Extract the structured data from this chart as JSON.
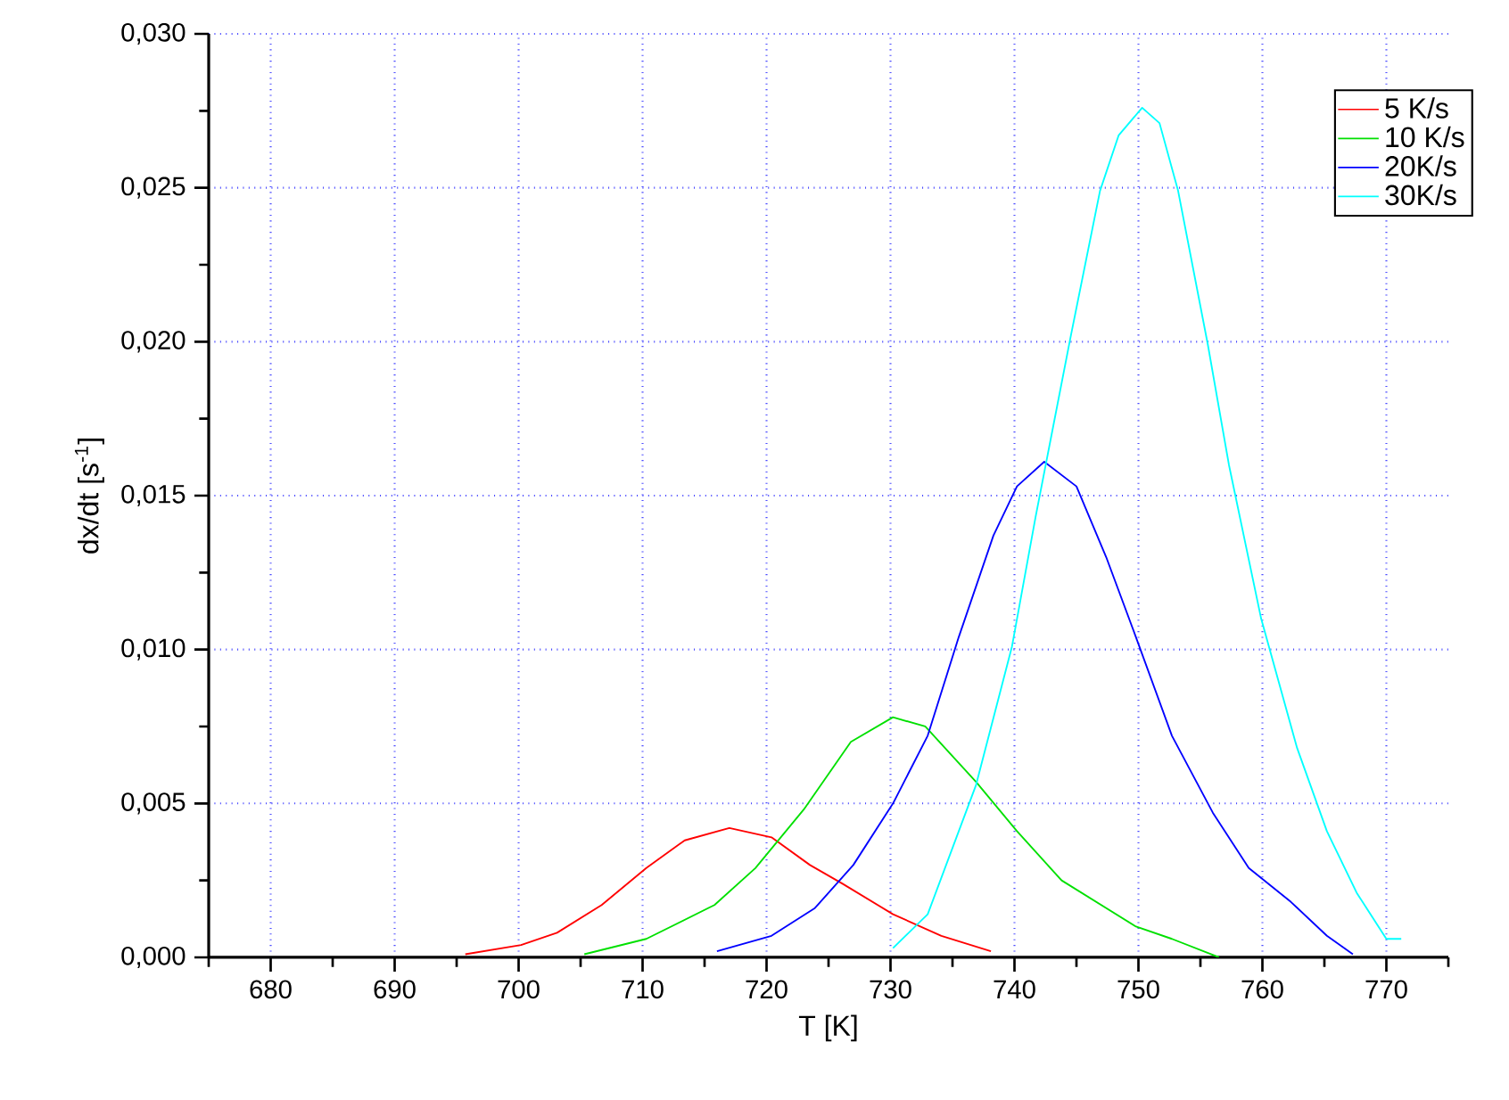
{
  "chart_data": {
    "type": "line",
    "xlabel": "T [K]",
    "ylabel": "dx/dt [s$^{-1}$]",
    "xlim": [
      675,
      775
    ],
    "ylim": [
      0,
      0.03
    ],
    "xticks": [
      {
        "value": 675,
        "label": null
      },
      680,
      {
        "value": 685,
        "label": null
      },
      690,
      {
        "value": 695,
        "label": null
      },
      700,
      {
        "value": 705,
        "label": null
      },
      710,
      {
        "value": 715,
        "label": null
      },
      720,
      {
        "value": 725,
        "label": null
      },
      730,
      {
        "value": 735,
        "label": null
      },
      740,
      {
        "value": 745,
        "label": null
      },
      750,
      {
        "value": 755,
        "label": null
      },
      760,
      {
        "value": 765,
        "label": null
      },
      770,
      {
        "value": 775,
        "label": null
      }
    ],
    "yticks": [
      {
        "value": 0,
        "label": "0,000"
      },
      {
        "value": 0.0025,
        "label": null
      },
      {
        "value": 0.005,
        "label": "0,005"
      },
      {
        "value": 0.0075,
        "label": null
      },
      {
        "value": 0.01,
        "label": "0,010"
      },
      {
        "value": 0.0125,
        "label": null
      },
      {
        "value": 0.015,
        "label": "0,015"
      },
      {
        "value": 0.0175,
        "label": null
      },
      {
        "value": 0.02,
        "label": "0,020"
      },
      {
        "value": 0.0225,
        "label": null
      },
      {
        "value": 0.025,
        "label": "0,025"
      },
      {
        "value": 0.0275,
        "label": null
      },
      {
        "value": 0.03,
        "label": "0,030"
      }
    ],
    "grid": true,
    "legend": "top right",
    "marker": "none",
    "line_style": "solid",
    "series": [
      {
        "name": "5 K/s",
        "color": "#ff0000",
        "x": [
          695.7,
          700.2,
          703.1,
          706.7,
          710.3,
          713.4,
          717.0,
          720.4,
          723.5,
          726.1,
          730.2,
          734.1,
          738.1
        ],
        "values": [
          0.0001,
          0.0004,
          0.0008,
          0.0017,
          0.0029,
          0.0038,
          0.0042,
          0.0039,
          0.003,
          0.0024,
          0.0014,
          0.0007,
          0.0002
        ]
      },
      {
        "name": "10 K/s",
        "color": "#00e000",
        "x": [
          705.3,
          710.3,
          715.8,
          719.1,
          723.0,
          726.8,
          730.2,
          732.8,
          736.9,
          740.2,
          743.8,
          749.8,
          752.7,
          756.5
        ],
        "values": [
          0.0001,
          0.0006,
          0.0017,
          0.0029,
          0.0048,
          0.007,
          0.0078,
          0.0075,
          0.0057,
          0.0041,
          0.0025,
          0.001,
          0.0006,
          0.0
        ]
      },
      {
        "name": "20K/s",
        "color": "#0000ff",
        "x": [
          716.0,
          720.4,
          723.9,
          727.0,
          730.2,
          733.0,
          735.5,
          738.3,
          740.2,
          742.4,
          745.0,
          747.4,
          749.8,
          752.7,
          756.0,
          758.9,
          762.3,
          765.2,
          767.3
        ],
        "values": [
          0.0002,
          0.0007,
          0.0016,
          0.003,
          0.005,
          0.0072,
          0.0104,
          0.0137,
          0.0153,
          0.0161,
          0.0153,
          0.013,
          0.0104,
          0.0072,
          0.0047,
          0.0029,
          0.0018,
          0.0007,
          0.0001
        ]
      },
      {
        "name": "30K/s",
        "color": "#00ffff",
        "x": [
          730.2,
          733.0,
          736.9,
          739.8,
          741.7,
          743.1,
          744.5,
          746.9,
          748.4,
          750.3,
          751.7,
          753.2,
          755.6,
          757.3,
          759.9,
          762.8,
          765.2,
          767.6,
          770.0,
          771.2
        ],
        "values": [
          0.0003,
          0.0014,
          0.0056,
          0.0101,
          0.0143,
          0.0172,
          0.0201,
          0.0249,
          0.0267,
          0.0276,
          0.0271,
          0.0249,
          0.0199,
          0.016,
          0.011,
          0.0068,
          0.0041,
          0.0021,
          0.0006,
          0.0006
        ]
      }
    ]
  }
}
